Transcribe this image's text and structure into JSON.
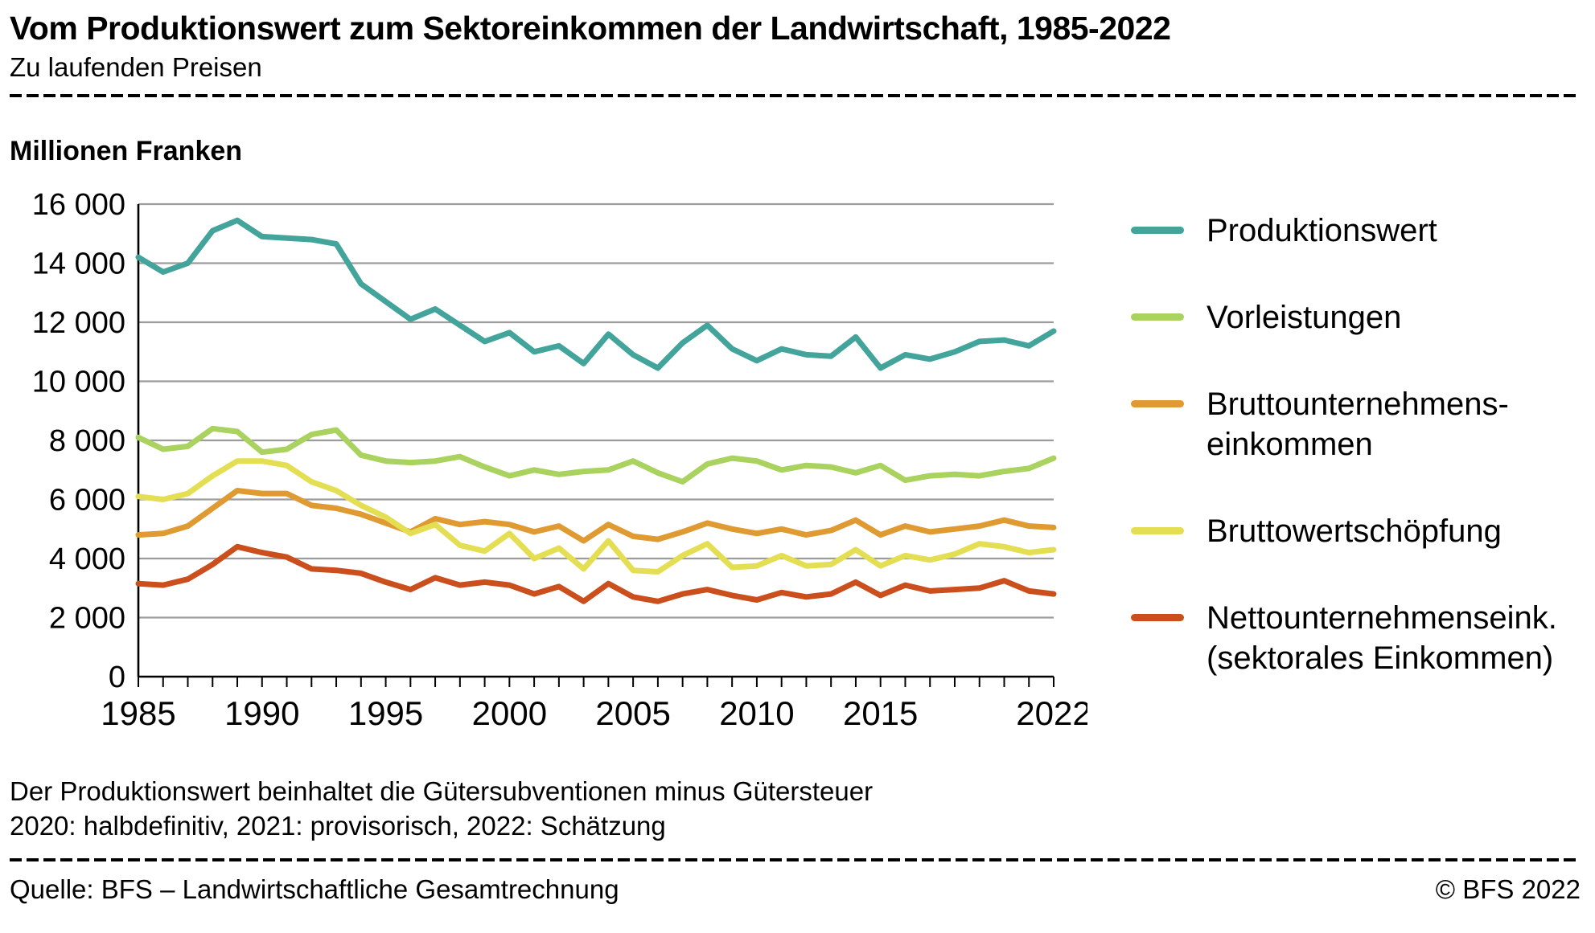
{
  "header": {
    "title": "Vom Produktionswert zum Sektoreinkommen der Landwirtschaft, 1985-2022",
    "subtitle": "Zu laufenden Preisen"
  },
  "chart": {
    "unit_label": "Millionen Franken"
  },
  "chart_data": {
    "type": "line",
    "title": "Vom Produktionswert zum Sektoreinkommen der Landwirtschaft, 1985-2022",
    "ylabel": "Millionen Franken",
    "grid": true,
    "legend_position": "right",
    "ylim": [
      0,
      16000
    ],
    "yticks": [
      {
        "value": 0,
        "label": "0"
      },
      {
        "value": 2000,
        "label": "2 000"
      },
      {
        "value": 4000,
        "label": "4 000"
      },
      {
        "value": 6000,
        "label": "6 000"
      },
      {
        "value": 8000,
        "label": "8 000"
      },
      {
        "value": 10000,
        "label": "10 000"
      },
      {
        "value": 12000,
        "label": "12 000"
      },
      {
        "value": 14000,
        "label": "14 000"
      },
      {
        "value": 16000,
        "label": "16 000"
      }
    ],
    "x": [
      1985,
      1986,
      1987,
      1988,
      1989,
      1990,
      1991,
      1992,
      1993,
      1994,
      1995,
      1996,
      1997,
      1998,
      1999,
      2000,
      2001,
      2002,
      2003,
      2004,
      2005,
      2006,
      2007,
      2008,
      2009,
      2010,
      2011,
      2012,
      2013,
      2014,
      2015,
      2016,
      2017,
      2018,
      2019,
      2020,
      2021,
      2022
    ],
    "xtick_labels": [
      1985,
      1990,
      1995,
      2000,
      2005,
      2010,
      2015,
      2022
    ],
    "series": [
      {
        "name": "Produktionswert",
        "label": "Produktionswert",
        "color": "#43a49c",
        "values": [
          14200,
          13700,
          14000,
          15100,
          15450,
          14900,
          14850,
          14800,
          14650,
          13300,
          12700,
          12100,
          12450,
          11900,
          11350,
          11650,
          11000,
          11200,
          10600,
          11600,
          10900,
          10450,
          11300,
          11900,
          11100,
          10700,
          11100,
          10900,
          10850,
          11500,
          10450,
          10900,
          10750,
          11000,
          11350,
          11400,
          11200,
          11700
        ]
      },
      {
        "name": "Vorleistungen",
        "label": "Vorleistungen",
        "color": "#a9d25f",
        "values": [
          8100,
          7700,
          7800,
          8400,
          8300,
          7600,
          7700,
          8200,
          8350,
          7500,
          7300,
          7250,
          7300,
          7450,
          7100,
          6800,
          7000,
          6850,
          6950,
          7000,
          7300,
          6900,
          6600,
          7200,
          7400,
          7300,
          7000,
          7150,
          7100,
          6900,
          7150,
          6650,
          6800,
          6850,
          6800,
          6950,
          7050,
          7400
        ]
      },
      {
        "name": "Bruttounternehmenseinkommen",
        "label": "Bruttounternehmens-\neinkommen",
        "color": "#df9a31",
        "values": [
          4800,
          4850,
          5100,
          5700,
          6300,
          6200,
          6200,
          5800,
          5700,
          5500,
          5200,
          4900,
          5350,
          5150,
          5250,
          5150,
          4900,
          5100,
          4600,
          5150,
          4750,
          4650,
          4900,
          5200,
          5000,
          4850,
          5000,
          4800,
          4950,
          5300,
          4800,
          5100,
          4900,
          5000,
          5100,
          5300,
          5100,
          5050
        ]
      },
      {
        "name": "Bruttowertschöpfung",
        "label": "Bruttowertschöpfung",
        "color": "#e4df52",
        "values": [
          6100,
          6000,
          6200,
          6800,
          7300,
          7300,
          7150,
          6600,
          6300,
          5800,
          5400,
          4850,
          5150,
          4450,
          4250,
          4850,
          4000,
          4350,
          3650,
          4600,
          3600,
          3550,
          4100,
          4500,
          3700,
          3750,
          4100,
          3750,
          3800,
          4300,
          3750,
          4100,
          3950,
          4150,
          4500,
          4400,
          4200,
          4300
        ]
      },
      {
        "name": "Nettounternehmenseinkommen (sektorales Einkommen)",
        "label": "Nettounternehmenseink.\n(sektorales Einkommen)",
        "color": "#cb4e1d",
        "values": [
          3150,
          3100,
          3300,
          3800,
          4400,
          4200,
          4050,
          3650,
          3600,
          3500,
          3200,
          2950,
          3350,
          3100,
          3200,
          3100,
          2800,
          3050,
          2550,
          3150,
          2700,
          2550,
          2800,
          2950,
          2750,
          2600,
          2850,
          2700,
          2800,
          3200,
          2750,
          3100,
          2900,
          2950,
          3000,
          3250,
          2900,
          2800
        ]
      }
    ]
  },
  "footnotes": [
    "Der Produktionswert beinhaltet die Gütersubventionen minus Gütersteuer",
    "2020: halbdefinitiv, 2021: provisorisch, 2022: Schätzung"
  ],
  "footer": {
    "source": "Quelle: BFS – Landwirtschaftliche Gesamtrechnung",
    "copyright": "© BFS 2022"
  }
}
